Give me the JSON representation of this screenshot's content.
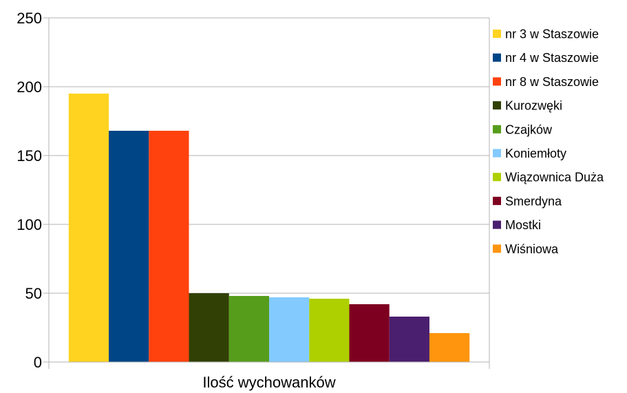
{
  "chart_data": {
    "type": "bar",
    "categories": [
      "Ilość wychowanków"
    ],
    "xlabel": "",
    "ylabel": "",
    "ylim": [
      0,
      250
    ],
    "yticks": [
      0,
      50,
      100,
      150,
      200,
      250
    ],
    "grid": true,
    "legend_position": "right",
    "series": [
      {
        "name": "nr 3 w Staszowie",
        "values": [
          195
        ],
        "color": "#ffd320"
      },
      {
        "name": "nr 4 w Staszowie",
        "values": [
          168
        ],
        "color": "#004586"
      },
      {
        "name": "nr 8 w Staszowie",
        "values": [
          168
        ],
        "color": "#ff420e"
      },
      {
        "name": "Kurozwęki",
        "values": [
          50
        ],
        "color": "#314004"
      },
      {
        "name": "Czajków",
        "values": [
          48
        ],
        "color": "#579d1c"
      },
      {
        "name": "Koniemłoty",
        "values": [
          47
        ],
        "color": "#83caff"
      },
      {
        "name": "Wiązownica Duża",
        "values": [
          46
        ],
        "color": "#aecf00"
      },
      {
        "name": "Smerdyna",
        "values": [
          42
        ],
        "color": "#7e0021"
      },
      {
        "name": "Mostki",
        "values": [
          33
        ],
        "color": "#4b1f6f"
      },
      {
        "name": "Wiśniowa",
        "values": [
          21
        ],
        "color": "#ff950e"
      }
    ]
  }
}
